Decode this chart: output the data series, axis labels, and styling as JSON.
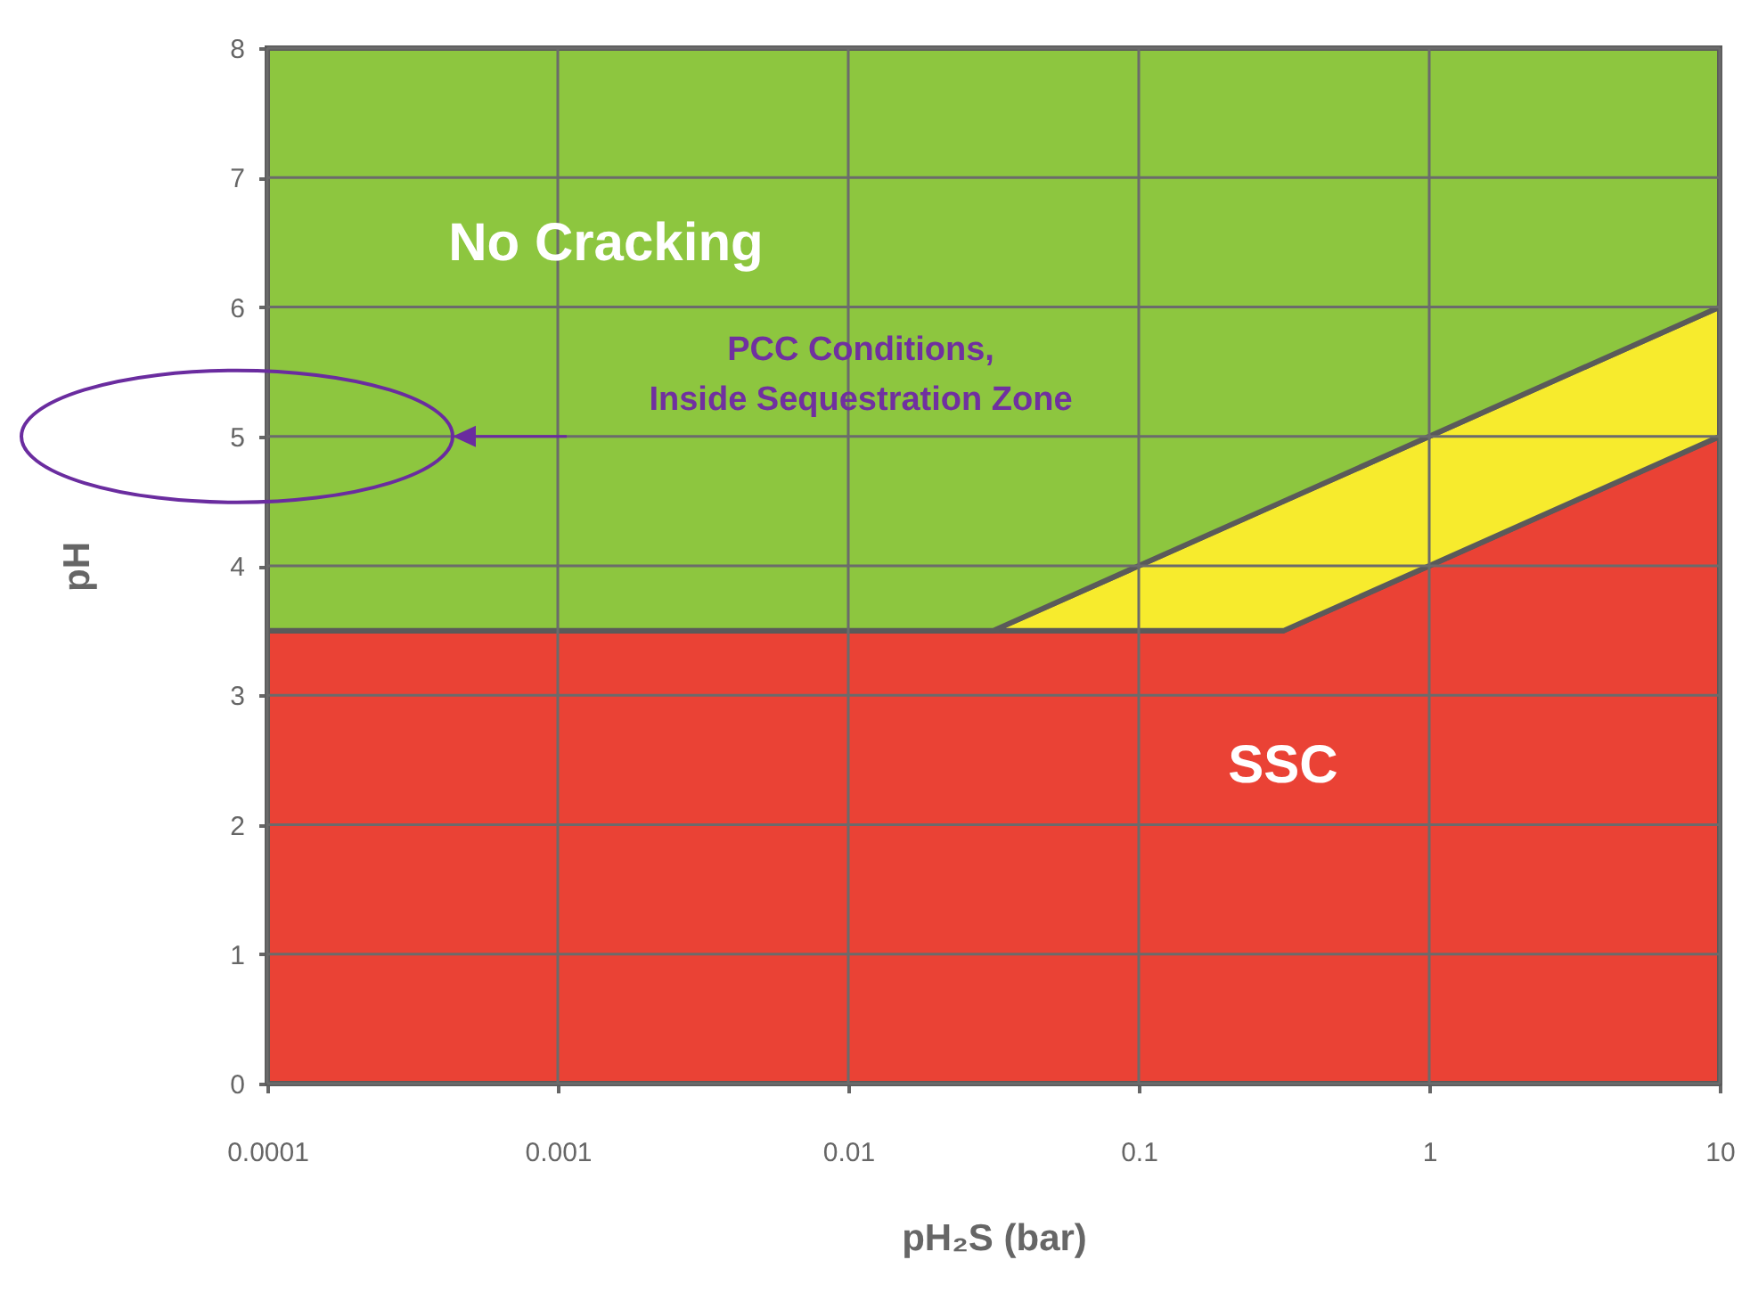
{
  "chart_data": {
    "type": "area",
    "stacked": true,
    "xlabel": "pH₂S (bar)",
    "ylabel": "pH",
    "log": "x",
    "x": [
      0.0001,
      0.0316,
      0.316,
      1,
      10
    ],
    "series": [
      {
        "color": "#ea4235",
        "values": [
          3.5,
          3.5,
          3.5,
          4,
          5
        ]
      },
      {
        "color": "#f7eb2d",
        "values": [
          0,
          0,
          1,
          1,
          1
        ]
      },
      {
        "color": "#8dc63f",
        "values": [
          4.5,
          4.5,
          3.5,
          3,
          2
        ]
      }
    ],
    "xlim": [
      0.0001,
      10
    ],
    "ylim": [
      0,
      8
    ],
    "xticks": [
      0.0001,
      0.001,
      0.01,
      0.1,
      1,
      10
    ],
    "yticks": [
      0,
      1,
      2,
      3,
      4,
      5,
      6,
      7,
      8
    ],
    "grid": true,
    "annotations": [
      "No Cracking",
      "PCC Conditions, Inside Sequestration Zone",
      "SSC"
    ]
  }
}
